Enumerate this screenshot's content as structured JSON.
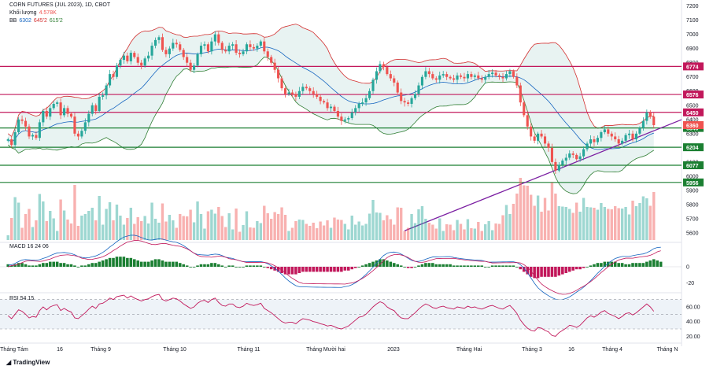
{
  "header": {
    "symbol": "CORN FUTURES (JUL 2023), 1D, CBOT",
    "volume_label": "Khối lượng",
    "volume_value": "4.578K",
    "bb_label": "BB",
    "bb_values": [
      "6302",
      "645'2",
      "615'2"
    ]
  },
  "macd_legend": "MACD  16  24  06",
  "rsi_legend": "RSI  54.15",
  "logo_text": "TradingView",
  "colors": {
    "up": "#26a69a",
    "down": "#ef5350",
    "bb_upper": "#d32f2f",
    "bb_lower": "#2e7d32",
    "bb_mid": "#1565c0",
    "bb_fill": "#e8f3f2",
    "resistance": "#c2185b",
    "support": "#1b7f32",
    "trendline": "#7b1fa2",
    "rsi": "#c2185b",
    "macd_line": "#1565c0",
    "signal_line": "#c2185b"
  },
  "chart_data": {
    "type": "candlestick",
    "price_axis_ticks": [
      "7200",
      "7100",
      "7000",
      "6900",
      "6800",
      "6700",
      "6600",
      "6500",
      "6400",
      "6300",
      "6200",
      "6100",
      "6000",
      "5900",
      "5800",
      "5700",
      "5600"
    ],
    "price_range": [
      5550,
      7220
    ],
    "x_labels": [
      "Tháng Tám",
      "16",
      "Tháng 9",
      "Tháng 10",
      "Tháng 11",
      "Tháng Mười hai",
      "2023",
      "Tháng Hai",
      "Tháng 3",
      "16",
      "Tháng 4",
      "Tháng N"
    ],
    "levels": [
      {
        "value": 6774,
        "label": "6774",
        "kind": "resistance"
      },
      {
        "value": 6576,
        "label": "6576",
        "kind": "resistance"
      },
      {
        "value": 6450,
        "label": "6450",
        "kind": "resistance"
      },
      {
        "value": 6340,
        "label": "6340",
        "kind": "support"
      },
      {
        "value": 6204,
        "label": "6204",
        "kind": "support"
      },
      {
        "value": 6077,
        "label": "6077",
        "kind": "support"
      },
      {
        "value": 5956,
        "label": "5956",
        "kind": "support"
      }
    ],
    "last_price": {
      "value": 6360,
      "label": "6360"
    },
    "trendline": {
      "from": {
        "bar": 113,
        "price": 5615
      },
      "to": {
        "bar": 186,
        "price": 6340
      }
    },
    "closes": [
      6260,
      6220,
      6310,
      6400,
      6390,
      6350,
      6280,
      6290,
      6270,
      6380,
      6460,
      6420,
      6480,
      6510,
      6520,
      6430,
      6480,
      6440,
      6420,
      6300,
      6280,
      6320,
      6380,
      6440,
      6500,
      6460,
      6560,
      6570,
      6640,
      6720,
      6700,
      6780,
      6820,
      6850,
      6810,
      6870,
      6840,
      6800,
      6780,
      6830,
      6850,
      6920,
      6960,
      6980,
      6890,
      6860,
      6900,
      6940,
      6930,
      6890,
      6840,
      6800,
      6750,
      6780,
      6860,
      6920,
      6930,
      6880,
      6950,
      7000,
      6940,
      6890,
      6880,
      6920,
      6930,
      6870,
      6860,
      6880,
      6930,
      6910,
      6900,
      6920,
      6950,
      6880,
      6840,
      6800,
      6750,
      6690,
      6620,
      6580,
      6590,
      6580,
      6560,
      6600,
      6630,
      6620,
      6600,
      6580,
      6560,
      6530,
      6520,
      6480,
      6490,
      6460,
      6420,
      6390,
      6400,
      6410,
      6450,
      6480,
      6510,
      6520,
      6550,
      6600,
      6680,
      6740,
      6790,
      6770,
      6720,
      6690,
      6660,
      6590,
      6530,
      6520,
      6510,
      6550,
      6580,
      6640,
      6700,
      6740,
      6720,
      6690,
      6680,
      6710,
      6720,
      6700,
      6690,
      6680,
      6710,
      6700,
      6690,
      6720,
      6700,
      6710,
      6690,
      6680,
      6700,
      6720,
      6730,
      6710,
      6700,
      6690,
      6720,
      6740,
      6700,
      6640,
      6520,
      6430,
      6350,
      6280,
      6250,
      6300,
      6280,
      6230,
      6200,
      6100,
      6040,
      6080,
      6110,
      6130,
      6160,
      6150,
      6120,
      6140,
      6190,
      6230,
      6260,
      6240,
      6270,
      6310,
      6330,
      6300,
      6280,
      6260,
      6230,
      6250,
      6290,
      6300,
      6260,
      6300,
      6340,
      6390,
      6450,
      6420,
      6360
    ],
    "rsi": [
      48,
      44,
      50,
      56,
      54,
      50,
      45,
      47,
      46,
      55,
      60,
      56,
      60,
      62,
      63,
      55,
      58,
      55,
      53,
      45,
      44,
      48,
      52,
      57,
      61,
      58,
      64,
      65,
      68,
      72,
      70,
      74,
      75,
      76,
      72,
      75,
      72,
      70,
      68,
      70,
      71,
      74,
      76,
      77,
      70,
      68,
      70,
      72,
      71,
      68,
      64,
      61,
      58,
      60,
      65,
      68,
      69,
      66,
      70,
      72,
      66,
      62,
      61,
      64,
      64,
      60,
      59,
      61,
      65,
      63,
      62,
      63,
      65,
      58,
      55,
      52,
      48,
      44,
      40,
      38,
      39,
      39,
      37,
      41,
      44,
      43,
      42,
      40,
      39,
      37,
      36,
      34,
      35,
      33,
      31,
      30,
      32,
      34,
      38,
      42,
      46,
      47,
      50,
      55,
      60,
      64,
      67,
      65,
      60,
      57,
      55,
      49,
      45,
      44,
      44,
      48,
      52,
      57,
      61,
      64,
      62,
      59,
      58,
      60,
      61,
      59,
      58,
      57,
      60,
      59,
      58,
      61,
      59,
      60,
      58,
      57,
      59,
      61,
      62,
      60,
      58,
      57,
      60,
      62,
      57,
      51,
      42,
      36,
      31,
      28,
      27,
      32,
      31,
      28,
      26,
      21,
      20,
      25,
      28,
      31,
      35,
      34,
      32,
      35,
      40,
      45,
      48,
      46,
      49,
      53,
      55,
      51,
      49,
      47,
      44,
      47,
      51,
      52,
      49,
      52,
      56,
      60,
      64,
      60,
      54
    ],
    "macd_hist": [
      2,
      1,
      2,
      3,
      3,
      2,
      1,
      1,
      1,
      2,
      3,
      3,
      4,
      4,
      4,
      3,
      3,
      2,
      2,
      1,
      0,
      1,
      1,
      2,
      3,
      3,
      4,
      5,
      6,
      7,
      7,
      8,
      8,
      8,
      7,
      7,
      6,
      5,
      4,
      4,
      4,
      5,
      6,
      6,
      5,
      4,
      4,
      4,
      4,
      3,
      2,
      1,
      0,
      0,
      1,
      2,
      2,
      2,
      3,
      3,
      2,
      1,
      0,
      1,
      1,
      0,
      0,
      0,
      1,
      1,
      1,
      1,
      1,
      0,
      -1,
      -2,
      -3,
      -4,
      -5,
      -6,
      -6,
      -6,
      -6,
      -5,
      -4,
      -4,
      -4,
      -4,
      -4,
      -4,
      -4,
      -4,
      -4,
      -4,
      -4,
      -4,
      -3,
      -3,
      -2,
      -1,
      0,
      1,
      2,
      3,
      4,
      5,
      6,
      6,
      5,
      4,
      3,
      2,
      1,
      0,
      -1,
      -1,
      0,
      1,
      2,
      3,
      3,
      3,
      2,
      2,
      2,
      2,
      2,
      1,
      1,
      1,
      1,
      1,
      1,
      1,
      1,
      1,
      0,
      0,
      1,
      1,
      1,
      1,
      1,
      1,
      1,
      0,
      -2,
      -4,
      -6,
      -8,
      -9,
      -9,
      -8,
      -8,
      -8,
      -8,
      -8,
      -7,
      -6,
      -5,
      -4,
      -3,
      -2,
      -2,
      -1,
      0,
      1,
      2,
      3,
      3,
      4,
      4,
      4,
      4,
      3,
      3,
      2,
      2,
      3,
      3,
      3,
      3,
      4,
      5,
      6,
      5,
      4
    ],
    "macd_axis_ticks": [
      "0",
      "-20"
    ],
    "rsi_axis_ticks": [
      "60.00",
      "40.00",
      "20.00"
    ]
  }
}
